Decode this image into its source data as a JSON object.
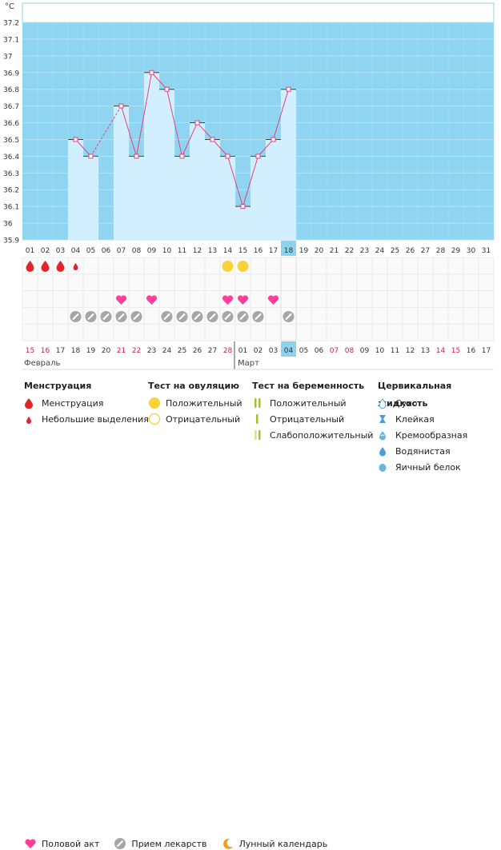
{
  "chart_data": {
    "type": "bar+line",
    "unit_label": "°C",
    "y_ticks": [
      "37.2",
      "37.1",
      "37",
      "36.9",
      "36.8",
      "36.7",
      "36.6",
      "36.5",
      "36.4",
      "36.3",
      "36.2",
      "36.1",
      "36",
      "35.9"
    ],
    "ylim": [
      35.9,
      37.2
    ],
    "cycle_days": [
      "01",
      "02",
      "03",
      "04",
      "05",
      "06",
      "07",
      "08",
      "09",
      "10",
      "11",
      "12",
      "13",
      "14",
      "15",
      "16",
      "17",
      "18",
      "19",
      "20",
      "21",
      "22",
      "23",
      "24",
      "25",
      "26",
      "27",
      "28",
      "29",
      "30",
      "31"
    ],
    "current_day_index": 17,
    "temperatures": [
      null,
      null,
      null,
      36.5,
      36.4,
      null,
      36.7,
      36.4,
      36.9,
      36.8,
      36.4,
      36.6,
      36.5,
      36.4,
      36.1,
      36.4,
      36.5,
      36.8,
      null,
      null,
      null,
      null,
      null,
      null,
      null,
      null,
      null,
      null,
      null,
      null,
      null
    ],
    "dashed_segments": [
      [
        4,
        6
      ]
    ],
    "menstruation": [
      "full",
      "full",
      "full",
      "light",
      null,
      null,
      null,
      null,
      null,
      null,
      null,
      null,
      null,
      null,
      null,
      null,
      null,
      null,
      null,
      null,
      null,
      null,
      null,
      null,
      null,
      null,
      null,
      null,
      null,
      null,
      null
    ],
    "ovulation_positive_days": [
      13,
      14
    ],
    "intercourse_days": [
      6,
      8,
      13,
      14,
      16
    ],
    "medication_days": [
      3,
      4,
      5,
      6,
      7,
      9,
      10,
      11,
      12,
      13,
      14,
      15,
      17
    ],
    "calendar_dates": [
      "15",
      "16",
      "17",
      "18",
      "19",
      "20",
      "21",
      "22",
      "23",
      "24",
      "25",
      "26",
      "27",
      "28",
      "01",
      "02",
      "03",
      "04",
      "05",
      "06",
      "07",
      "08",
      "09",
      "10",
      "11",
      "12",
      "13",
      "14",
      "15",
      "16",
      "17"
    ],
    "red_date_indices": [
      0,
      1,
      6,
      7,
      13,
      20,
      21,
      27,
      28
    ],
    "month_labels": [
      {
        "label": "Февраль",
        "start_index": 0
      },
      {
        "label": "Март",
        "start_index": 14
      }
    ]
  },
  "legend": {
    "menstruation": {
      "title": "Менструация",
      "items": [
        "Менструация",
        "Небольшие выделения"
      ]
    },
    "ovulation": {
      "title": "Тест на овуляцию",
      "items": [
        "Положительный",
        "Отрицательный"
      ]
    },
    "pregnancy": {
      "title": "Тест на беременность",
      "items": [
        "Положительный",
        "Отрицательный",
        "Слабоположительный"
      ]
    },
    "cervical": {
      "title": "Цервикальная жидкость",
      "items": [
        "Сухо",
        "Клейкая",
        "Кремообразная",
        "Водянистая",
        "Яичный белок"
      ]
    },
    "bottom": [
      "Половой акт",
      "Прием лекарств",
      "Лунный календарь"
    ]
  },
  "colors": {
    "sky": "#8fd5f2",
    "bar": "#d2efff",
    "line": "#e8407a",
    "drop": "#e3242b",
    "heart": "#ff3f9a",
    "pill": "#a6a6a6",
    "ovulation": "#f9d23a",
    "current_day": "#8ed3ee",
    "red_date": "#d61a4b",
    "positive_test": "#9cc625"
  }
}
